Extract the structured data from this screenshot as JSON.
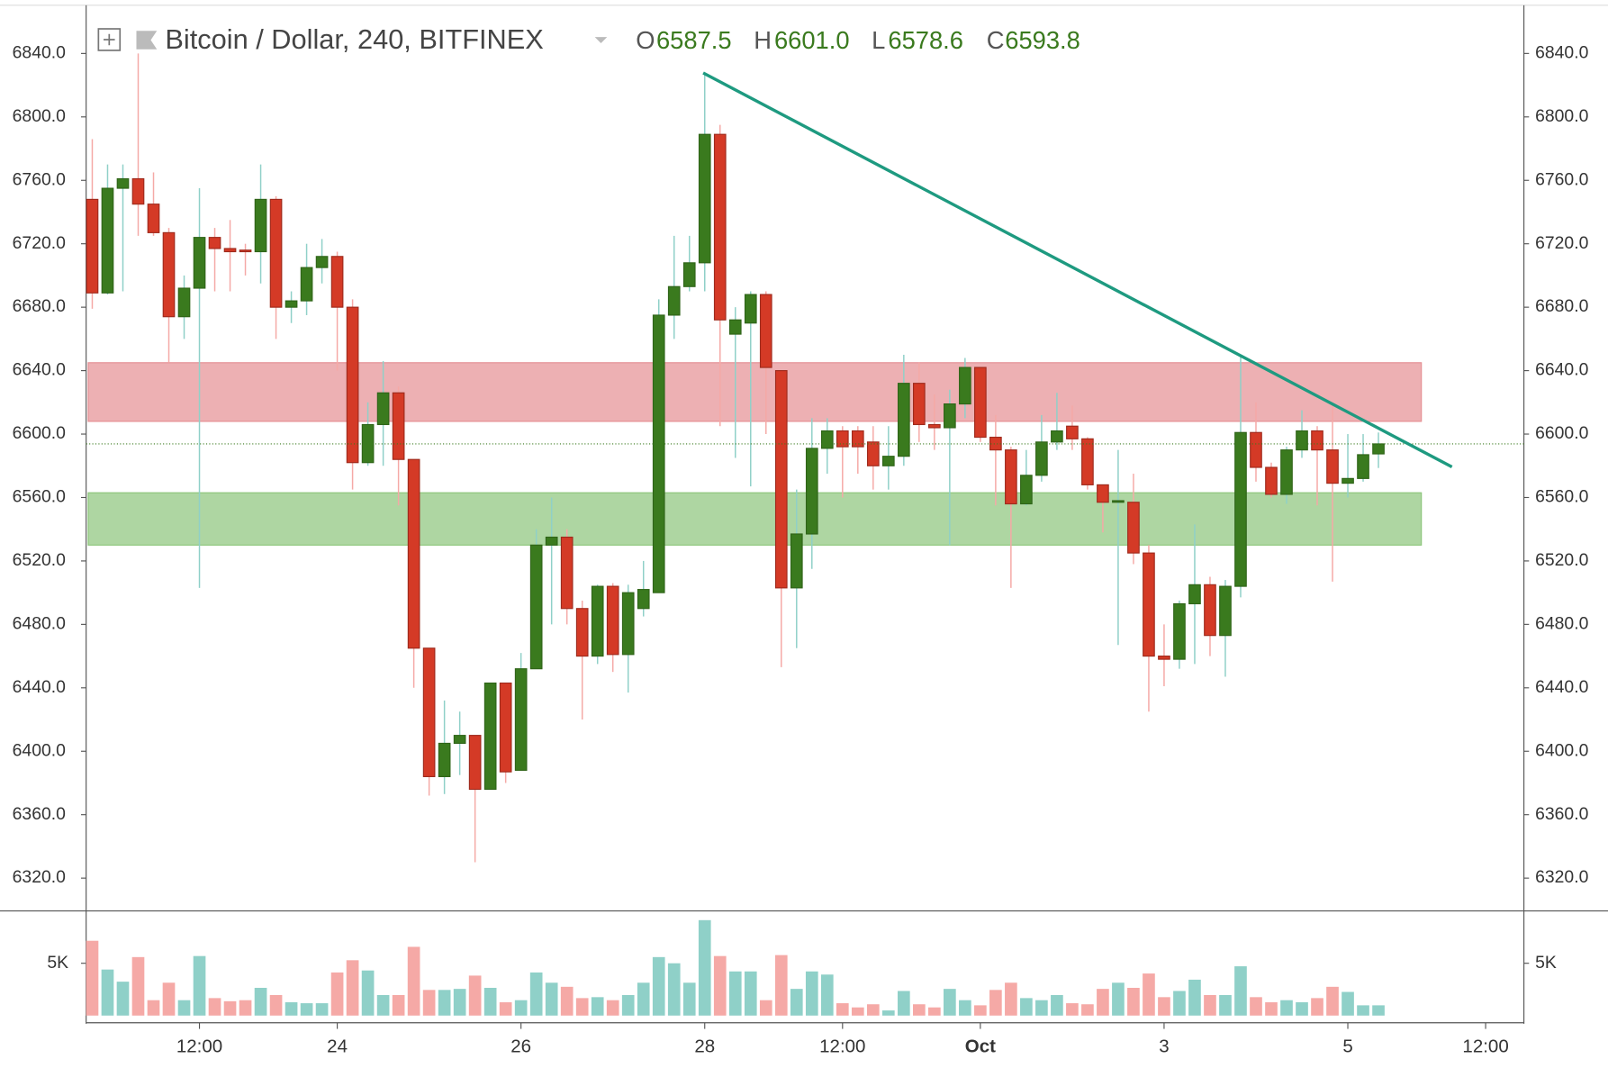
{
  "chart_data": [
    {
      "type": "candlestick",
      "title": "Bitcoin / Dollar, 240, BITFINEX",
      "ohlc": {
        "labels": [
          "O",
          "H",
          "L",
          "C"
        ],
        "values": [
          6587.5,
          6601,
          6578.6,
          6593.8
        ],
        "value_labels": [
          "6587.5",
          "6601.0",
          "6578.6",
          "6593.8"
        ]
      },
      "open": [
        6748,
        6689,
        6755,
        6761,
        6745,
        6727,
        6674,
        6692,
        6724,
        6717,
        6716,
        6715,
        6748,
        6680,
        6684,
        6705,
        6712,
        6680,
        6582,
        6606,
        6626,
        6584,
        6465,
        6384,
        6405,
        6410,
        6376,
        6443,
        6388,
        6452,
        6530,
        6535,
        6490,
        6460,
        6504,
        6461,
        6490,
        6500,
        6675,
        6693,
        6708,
        6789,
        6663,
        6670,
        6688,
        6640,
        6503,
        6537,
        6591,
        6602,
        6602,
        6595,
        6580,
        6586,
        6632,
        6606,
        6604,
        6619,
        6642,
        6598,
        6590,
        6556,
        6574,
        6595,
        6605,
        6597,
        6568,
        6557,
        6557,
        6525,
        6460,
        6458,
        6493,
        6505,
        6473,
        6504,
        6601,
        6579,
        6562,
        6590,
        6602,
        6590,
        6569,
        6572,
        6587.5
      ],
      "high": [
        6786,
        6770,
        6770,
        6840,
        6765,
        6730,
        6700,
        6755,
        6730,
        6735,
        6720,
        6770,
        6750,
        6690,
        6720,
        6723,
        6715,
        6685,
        6620,
        6646,
        6630,
        6584,
        6465,
        6432,
        6425,
        6410,
        6443,
        6443,
        6462,
        6540,
        6560,
        6540,
        6495,
        6505,
        6506,
        6505,
        6520,
        6685,
        6725,
        6725,
        6827,
        6795,
        6680,
        6690,
        6690,
        6640,
        6565,
        6610,
        6610,
        6605,
        6605,
        6605,
        6605,
        6650,
        6645,
        6625,
        6628,
        6648,
        6642,
        6612,
        6592,
        6590,
        6612,
        6626,
        6618,
        6598,
        6568,
        6590,
        6575,
        6530,
        6480,
        6495,
        6543,
        6510,
        6508,
        6650,
        6620,
        6582,
        6592,
        6615,
        6605,
        6620,
        6600,
        6600,
        6601
      ],
      "low": [
        6679,
        6688,
        6690,
        6725,
        6725,
        6645,
        6660,
        6503,
        6690,
        6690,
        6700,
        6695,
        6660,
        6670,
        6675,
        6695,
        6640,
        6565,
        6580,
        6580,
        6555,
        6440,
        6372,
        6373,
        6385,
        6330,
        6376,
        6380,
        6388,
        6452,
        6480,
        6480,
        6420,
        6455,
        6450,
        6437,
        6485,
        6500,
        6660,
        6690,
        6690,
        6605,
        6585,
        6567,
        6600,
        6453,
        6465,
        6515,
        6575,
        6560,
        6575,
        6565,
        6565,
        6580,
        6595,
        6590,
        6530,
        6610,
        6595,
        6555,
        6503,
        6555,
        6570,
        6590,
        6590,
        6565,
        6538,
        6467,
        6518,
        6425,
        6441,
        6452,
        6455,
        6460,
        6447,
        6497,
        6570,
        6560,
        6556,
        6585,
        6555,
        6507,
        6560,
        6570,
        6578.6
      ],
      "close": [
        6689,
        6755,
        6761,
        6745,
        6727,
        6674,
        6692,
        6724,
        6717,
        6715,
        6715,
        6748,
        6680,
        6684,
        6705,
        6712,
        6680,
        6582,
        6606,
        6626,
        6584,
        6465,
        6384,
        6405,
        6410,
        6376,
        6443,
        6387,
        6452,
        6530,
        6535,
        6490,
        6460,
        6504,
        6461,
        6500,
        6502,
        6675,
        6693,
        6708,
        6789,
        6672,
        6672,
        6688,
        6642,
        6503,
        6537,
        6591,
        6602,
        6592,
        6592,
        6580,
        6586,
        6632,
        6606,
        6604,
        6619,
        6642,
        6598,
        6590,
        6556,
        6574,
        6595,
        6602,
        6597,
        6568,
        6557,
        6558,
        6525,
        6460,
        6458,
        6493,
        6505,
        6473,
        6504,
        6601,
        6579,
        6562,
        6590,
        6602,
        6590,
        6569,
        6572,
        6587,
        6593.8
      ],
      "up_color": "#3a7a1e",
      "down_color": "#d43a26",
      "ylim": [
        6299.3,
        6870.4
      ],
      "yticks": [
        {
          "value": 6840,
          "label": "6840.0"
        },
        {
          "value": 6800,
          "label": "6800.0"
        },
        {
          "value": 6760,
          "label": "6760.0"
        },
        {
          "value": 6720,
          "label": "6720.0"
        },
        {
          "value": 6680,
          "label": "6680.0"
        },
        {
          "value": 6640,
          "label": "6640.0"
        },
        {
          "value": 6600,
          "label": "6600.0"
        },
        {
          "value": 6560,
          "label": "6560.0"
        },
        {
          "value": 6520,
          "label": "6520.0"
        },
        {
          "value": 6480,
          "label": "6480.0"
        },
        {
          "value": 6440,
          "label": "6440.0"
        },
        {
          "value": 6400,
          "label": "6400.0"
        },
        {
          "value": 6360,
          "label": "6360.0"
        },
        {
          "value": 6320,
          "label": "6320.0"
        }
      ],
      "xlim": [
        -0.4,
        93.5
      ],
      "xticks": [
        {
          "value": 7,
          "label": "12:00"
        },
        {
          "value": 16,
          "label": "24"
        },
        {
          "value": 28,
          "label": "26"
        },
        {
          "value": 40,
          "label": "28"
        },
        {
          "value": 49,
          "label": "12:00"
        },
        {
          "value": 58,
          "label": "Oct"
        },
        {
          "value": 70,
          "label": "3"
        },
        {
          "value": 82,
          "label": "5"
        },
        {
          "value": 91,
          "label": "12:00"
        }
      ],
      "zones": [
        {
          "range": [
            6608,
            6645
          ],
          "color": "#e58f93"
        },
        {
          "range": [
            6530,
            6563
          ],
          "color": "#8cc57a"
        }
      ],
      "trendline": {
        "x": [
          39.9,
          88.8
        ],
        "y": [
          6827.7,
          6579.3
        ],
        "color": "#1e9a80"
      },
      "grid": false
    },
    {
      "type": "bar",
      "values": [
        7150,
        4400,
        3240,
        5590,
        1470,
        3140,
        1470,
        5690,
        1670,
        1370,
        1470,
        2650,
        1960,
        1270,
        1180,
        1180,
        4120,
        5290,
        4310,
        1960,
        1960,
        6570,
        2450,
        2450,
        2550,
        3820,
        2650,
        1270,
        1470,
        4120,
        3140,
        2750,
        1670,
        1760,
        1470,
        1960,
        3140,
        5590,
        5000,
        3140,
        9120,
        5690,
        4220,
        4220,
        1470,
        5780,
        2550,
        4220,
        3920,
        1180,
        780,
        1080,
        490,
        2350,
        1080,
        780,
        2550,
        1470,
        980,
        2450,
        3140,
        1670,
        1470,
        1960,
        1180,
        1080,
        2550,
        3140,
        2650,
        4020,
        1760,
        2350,
        3430,
        1960,
        1960,
        4710,
        1760,
        1270,
        1470,
        1270,
        1670,
        2750,
        2260,
        980,
        980
      ],
      "up_color": "#8fd0c8",
      "down_color": "#f5a9a6",
      "ylim": [
        0,
        10000
      ],
      "yticks": [
        {
          "value": 5000,
          "label": "5K"
        }
      ],
      "grid": false
    }
  ]
}
